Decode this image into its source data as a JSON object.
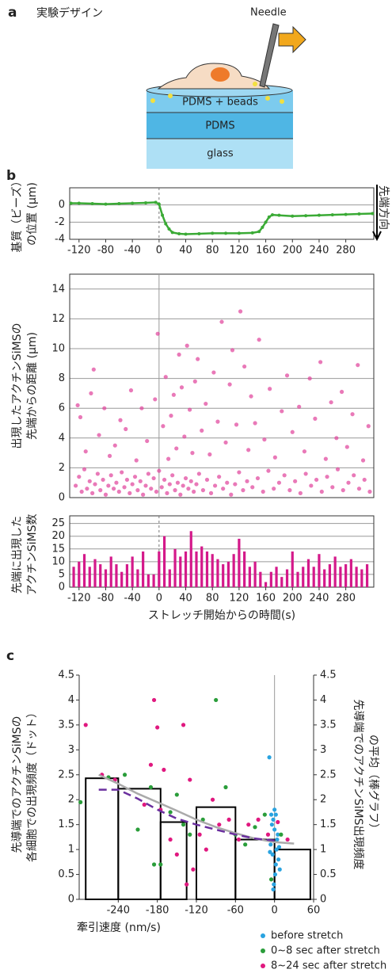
{
  "panel_a": {
    "label": "a",
    "title": "実験デザイン",
    "needle": "Needle",
    "layers": [
      "PDMS + beads",
      "PDMS",
      "glass"
    ]
  },
  "panel_b_label": "b",
  "panel_c_label": "c",
  "chart_data": [
    {
      "type": "line",
      "color": "#3aaa35",
      "ylabel": [
        "基質（ビーズ）",
        "の位置 (μm)"
      ],
      "annotation": "先端方向",
      "x": [
        -132,
        -120,
        -100,
        -80,
        -60,
        -40,
        -20,
        -5,
        0,
        5,
        10,
        15,
        20,
        30,
        40,
        60,
        80,
        100,
        120,
        140,
        150,
        155,
        160,
        165,
        170,
        180,
        200,
        220,
        240,
        260,
        280,
        300,
        320
      ],
      "values": [
        0.2,
        0.2,
        0.15,
        0.1,
        0.15,
        0.2,
        0.25,
        0.3,
        0.1,
        -1.2,
        -2.2,
        -2.8,
        -3.2,
        -3.35,
        -3.4,
        -3.35,
        -3.3,
        -3.3,
        -3.3,
        -3.25,
        -3.1,
        -2.6,
        -2,
        -1.4,
        -1.15,
        -1.2,
        -1.3,
        -1.25,
        -1.2,
        -1.15,
        -1.1,
        -1.05,
        -1.0
      ],
      "xlim": [
        -134,
        322
      ],
      "xticks": [
        -120,
        -80,
        -40,
        0,
        40,
        80,
        120,
        160,
        200,
        240,
        280
      ],
      "ylim": [
        -4,
        2
      ],
      "yticks": [
        -4,
        -2,
        0
      ],
      "grid": true
    },
    {
      "type": "scatter",
      "color": "#e0409a",
      "ylabel": [
        "出現したアクチンSiMSの",
        "先端からの距離 (μm)"
      ],
      "x": [
        -125,
        -120,
        -116,
        -112,
        -108,
        -104,
        -100,
        -96,
        -92,
        -88,
        -84,
        -80,
        -76,
        -72,
        -68,
        -64,
        -60,
        -56,
        -52,
        -48,
        -44,
        -40,
        -36,
        -32,
        -28,
        -24,
        -20,
        -16,
        -12,
        -8,
        -4,
        0,
        4,
        8,
        12,
        16,
        20,
        24,
        28,
        32,
        36,
        40,
        44,
        48,
        52,
        56,
        60,
        66,
        72,
        78,
        84,
        90,
        96,
        102,
        108,
        114,
        120,
        126,
        132,
        140,
        148,
        156,
        164,
        172,
        180,
        188,
        196,
        204,
        212,
        220,
        228,
        236,
        244,
        252,
        260,
        268,
        276,
        284,
        292,
        300,
        308,
        316,
        -122,
        -118,
        -110,
        -102,
        -98,
        -90,
        -82,
        -74,
        -66,
        -58,
        -50,
        -42,
        -34,
        -26,
        -18,
        -6,
        -2,
        6,
        10,
        14,
        18,
        22,
        26,
        30,
        34,
        38,
        42,
        46,
        50,
        54,
        58,
        64,
        70,
        76,
        82,
        88,
        94,
        100,
        106,
        110,
        116,
        122,
        128,
        134,
        138,
        144,
        150,
        158,
        166,
        174,
        184,
        192,
        200,
        210,
        218,
        226,
        234,
        242,
        250,
        258,
        266,
        274,
        282,
        290,
        298,
        306,
        314
      ],
      "values": [
        0.8,
        1.4,
        0.4,
        1.9,
        0.6,
        1.1,
        0.3,
        0.9,
        1.6,
        0.5,
        1.2,
        0.2,
        0.8,
        1.5,
        0.6,
        1.0,
        0.4,
        1.7,
        0.7,
        1.2,
        0.3,
        0.9,
        1.4,
        0.5,
        1.1,
        0.2,
        0.8,
        1.6,
        0.6,
        1.3,
        0.4,
        1.8,
        0.7,
        1.2,
        0.3,
        0.9,
        1.5,
        0.5,
        1.0,
        0.2,
        0.8,
        1.3,
        0.6,
        1.1,
        0.4,
        0.9,
        1.6,
        0.5,
        1.2,
        0.3,
        0.8,
        1.4,
        0.6,
        1.0,
        0.2,
        0.9,
        1.7,
        0.5,
        1.1,
        0.7,
        1.3,
        0.4,
        1.8,
        0.6,
        1.0,
        1.5,
        0.5,
        1.1,
        0.3,
        1.6,
        0.8,
        1.2,
        0.4,
        1.4,
        0.7,
        1.9,
        0.5,
        1.0,
        1.5,
        0.6,
        1.2,
        0.4,
        6.2,
        5.4,
        3.1,
        7.0,
        8.6,
        4.2,
        6.0,
        2.8,
        3.5,
        5.2,
        4.6,
        7.2,
        2.5,
        6.0,
        3.8,
        6.6,
        11.0,
        4.8,
        8.1,
        2.6,
        5.5,
        6.9,
        3.3,
        9.6,
        7.4,
        4.1,
        10.2,
        5.9,
        3.0,
        7.8,
        9.3,
        4.5,
        6.3,
        2.9,
        8.4,
        5.1,
        11.8,
        3.7,
        7.6,
        9.9,
        4.9,
        12.5,
        8.8,
        3.2,
        6.8,
        5.0,
        10.6,
        3.9,
        7.3,
        2.7,
        5.8,
        8.2,
        4.4,
        6.1,
        3.1,
        8.0,
        5.3,
        9.1,
        2.6,
        6.4,
        4.0,
        7.1,
        3.4,
        5.6,
        8.9,
        2.5,
        4.8
      ],
      "xlim": [
        -134,
        322
      ],
      "ylim": [
        0,
        15
      ],
      "yticks": [
        0,
        2,
        4,
        6,
        8,
        10,
        12,
        14
      ],
      "grid": true
    },
    {
      "type": "bar",
      "color": "#d4198a",
      "ylabel": [
        "先端に出現した",
        "アクチンSiMS数"
      ],
      "xlabel": "ストレッチ開始からの時間(s)",
      "x": [
        -128,
        -120,
        -112,
        -104,
        -96,
        -88,
        -80,
        -72,
        -64,
        -56,
        -48,
        -40,
        -32,
        -24,
        -16,
        -8,
        0,
        8,
        16,
        24,
        32,
        40,
        48,
        56,
        64,
        72,
        80,
        88,
        96,
        104,
        112,
        120,
        128,
        136,
        144,
        152,
        160,
        168,
        176,
        184,
        192,
        200,
        208,
        216,
        224,
        232,
        240,
        248,
        256,
        264,
        272,
        280,
        288,
        296,
        304,
        312
      ],
      "values": [
        8,
        10,
        13,
        8,
        11,
        9,
        7,
        12,
        9,
        6,
        9,
        12,
        7,
        14,
        5,
        5,
        14,
        20,
        7,
        15,
        12,
        14,
        22,
        14,
        16,
        14,
        13,
        11,
        9,
        10,
        13,
        19,
        14,
        8,
        10,
        6,
        2,
        6,
        8,
        4,
        7,
        14,
        6,
        8,
        11,
        8,
        13,
        7,
        9,
        12,
        8,
        9,
        11,
        8,
        7,
        9
      ],
      "xlim": [
        -134,
        322
      ],
      "xticks": [
        -120,
        -80,
        -40,
        0,
        40,
        80,
        120,
        160,
        200,
        240,
        280
      ],
      "ylim": [
        0,
        28
      ],
      "yticks": [
        0,
        5,
        10,
        15,
        20,
        25
      ],
      "grid": true
    },
    {
      "type": "combo",
      "ylabel": [
        "先導端でのアクチンSiMSの",
        "各細胞での出現頻度（ドット）"
      ],
      "y2label": [
        "先導端でのアクチンSiMS出現頻度",
        "の平均（棒グラフ）"
      ],
      "xlabel": "牽引速度 (nm/s)",
      "xlim": [
        -300,
        60
      ],
      "xticks": [
        -240,
        -180,
        -120,
        -60,
        0,
        60
      ],
      "ylim": [
        0,
        4.5
      ],
      "yticks": [
        0,
        0.5,
        1,
        1.5,
        2,
        2.5,
        3,
        3.5,
        4,
        4.5
      ],
      "y2lim": [
        0,
        4.5
      ],
      "y2ticks": [
        0,
        0.5,
        1,
        1.5,
        2,
        2.5,
        3,
        3.5,
        4,
        4.5
      ],
      "bins": [
        -290,
        -240,
        -175,
        -135,
        -120,
        -60,
        0,
        55
      ],
      "bar_values": [
        2.43,
        2.22,
        1.55,
        null,
        1.85,
        1.2,
        1.0
      ],
      "bar_color": "#000000",
      "curves": [
        {
          "color": "#aaaaaa",
          "dashed": false,
          "x": [
            -270,
            -240,
            -210,
            -180,
            -150,
            -120,
            -90,
            -60,
            -30,
            0,
            30
          ],
          "values": [
            2.5,
            2.32,
            2.12,
            1.95,
            1.78,
            1.6,
            1.45,
            1.33,
            1.22,
            1.15,
            1.12
          ]
        },
        {
          "color": "#6a2f9e",
          "dashed": true,
          "x": [
            -270,
            -240,
            -210,
            -180,
            -150,
            -120,
            -90,
            -60,
            -30,
            0
          ],
          "values": [
            2.2,
            2.2,
            2.02,
            1.8,
            1.62,
            1.5,
            1.4,
            1.3,
            1.22,
            1.18
          ]
        }
      ],
      "series": [
        {
          "name": "before stretch",
          "color": "#29a3e0",
          "x": [
            -8,
            -5,
            -2,
            0,
            2,
            5,
            8,
            -6,
            -3,
            3,
            6,
            -4,
            4,
            -1,
            1,
            -7,
            7,
            -2,
            2,
            0
          ],
          "values": [
            2.85,
            1.7,
            1.6,
            1.4,
            1.7,
            1.3,
            0.6,
            1.1,
            0.9,
            1.0,
            0.8,
            1.5,
            1.2,
            0.3,
            0.5,
            0.95,
            1.05,
            0.2,
            0.7,
            1.8
          ]
        },
        {
          "name": "0~8 sec after stretch",
          "color": "#2a9d3a",
          "x": [
            -298,
            -255,
            -230,
            -210,
            -185,
            -175,
            -160,
            -150,
            -130,
            -110,
            -90,
            -75,
            -60,
            -45,
            -30,
            -15,
            -5,
            10,
            -190,
            -140
          ],
          "values": [
            1.95,
            2.45,
            2.5,
            1.4,
            0.7,
            0.7,
            1.75,
            2.1,
            1.3,
            1.6,
            4.0,
            2.25,
            1.3,
            1.1,
            1.45,
            1.7,
            0.4,
            1.3,
            2.25,
            1.5
          ]
        },
        {
          "name": "8~24 sec after stretch",
          "color": "#e0187f",
          "x": [
            -290,
            -265,
            -245,
            -200,
            -190,
            -185,
            -180,
            -170,
            -160,
            -150,
            -140,
            -130,
            -125,
            -115,
            -105,
            -95,
            -85,
            -70,
            -55,
            -40,
            -25,
            -10,
            5,
            20,
            -175,
            -135
          ],
          "values": [
            3.5,
            2.5,
            2.4,
            1.9,
            2.7,
            4.0,
            3.45,
            2.6,
            1.2,
            0.9,
            3.5,
            2.4,
            0.6,
            1.3,
            1.0,
            2.0,
            1.5,
            1.6,
            1.2,
            1.5,
            1.6,
            1.3,
            1.55,
            1.2,
            1.8,
            0.3
          ]
        }
      ]
    }
  ]
}
